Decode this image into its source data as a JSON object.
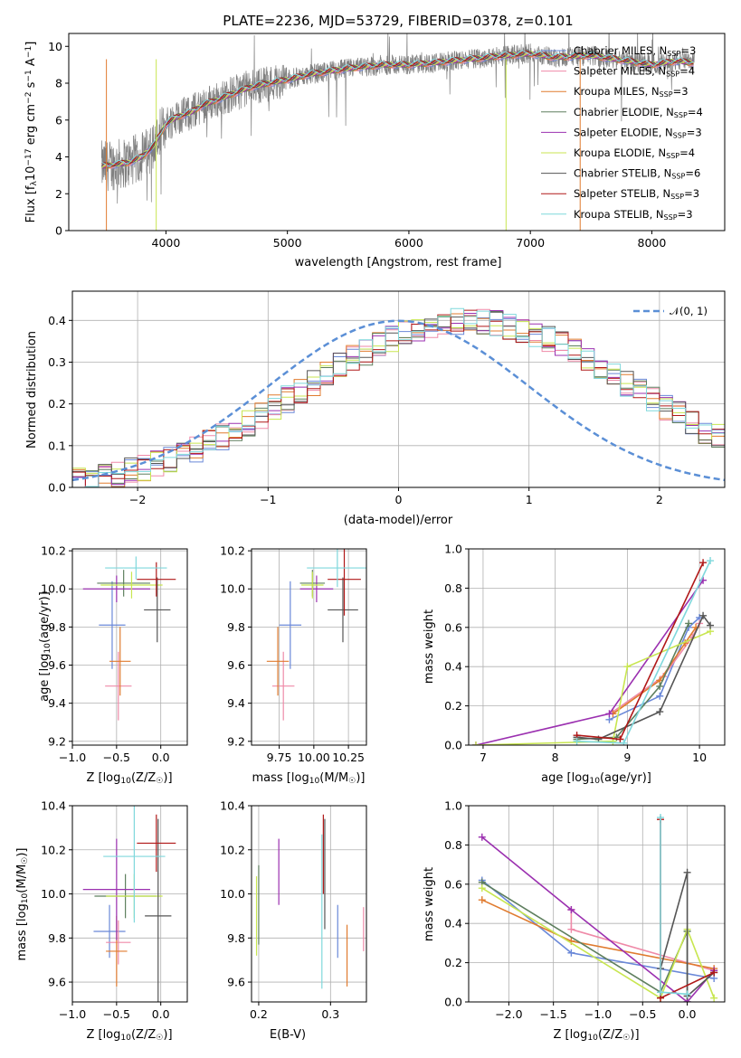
{
  "colors": {
    "Chabrier MILES": "#6a88d8",
    "Salpeter MILES": "#ef8aa8",
    "Kroupa MILES": "#e07b2f",
    "Chabrier ELODIE": "#5e7f5e",
    "Salpeter ELODIE": "#9b30b0",
    "Kroupa ELODIE": "#c8e650",
    "Chabrier STELIB": "#555555",
    "Salpeter STELIB": "#b01818",
    "Kroupa STELIB": "#7fd8dc"
  },
  "chart_data": [
    {
      "type": "line",
      "title": "PLATE=2236, MJD=53729, FIBERID=0378, z=0.101",
      "xlabel": "wavelength [Angstrom, rest frame]",
      "ylabel": "Flux [fλ10⁻¹⁷ erg cm⁻² s⁻¹ A⁻¹]",
      "xlim": [
        3200,
        8600
      ],
      "ylim": [
        0,
        10.7
      ],
      "xticks": [
        4000,
        5000,
        6000,
        7000,
        8000
      ],
      "yticks": [
        0,
        2,
        4,
        6,
        8,
        10
      ],
      "grid": false,
      "legend_position": "top-right",
      "legend": [
        {
          "label": "Chabrier MILES, N",
          "sub": "SSP",
          "tail": "=3",
          "series": "Chabrier MILES"
        },
        {
          "label": "Salpeter MILES, N",
          "sub": "SSP",
          "tail": "=4",
          "series": "Salpeter MILES"
        },
        {
          "label": "Kroupa MILES, N",
          "sub": "SSP",
          "tail": "=3",
          "series": "Kroupa MILES"
        },
        {
          "label": "Chabrier ELODIE, N",
          "sub": "SSP",
          "tail": "=4",
          "series": "Chabrier ELODIE"
        },
        {
          "label": "Salpeter ELODIE, N",
          "sub": "SSP",
          "tail": "=3",
          "series": "Salpeter ELODIE"
        },
        {
          "label": "Kroupa ELODIE, N",
          "sub": "SSP",
          "tail": "=4",
          "series": "Kroupa ELODIE"
        },
        {
          "label": "Chabrier STELIB, N",
          "sub": "SSP",
          "tail": "=6",
          "series": "Chabrier STELIB"
        },
        {
          "label": "Salpeter STELIB, N",
          "sub": "SSP",
          "tail": "=3",
          "series": "Salpeter STELIB"
        },
        {
          "label": "Kroupa STELIB, N",
          "sub": "SSP",
          "tail": "=3",
          "series": "Kroupa STELIB"
        }
      ],
      "continuum": {
        "x": [
          3470,
          3600,
          3700,
          3800,
          3900,
          4000,
          4100,
          4200,
          4300,
          4500,
          4700,
          5000,
          5200,
          5500,
          5800,
          6000,
          6200,
          6500,
          6800,
          7000,
          7200,
          7500,
          7800,
          8000,
          8200,
          8350
        ],
        "y": [
          3.5,
          3.6,
          3.7,
          4.0,
          4.6,
          5.8,
          6.2,
          6.4,
          6.8,
          7.3,
          7.8,
          8.2,
          8.5,
          8.8,
          9.0,
          9.0,
          9.1,
          9.3,
          9.5,
          9.6,
          9.4,
          9.5,
          9.2,
          9.0,
          9.2,
          9.1
        ]
      }
    },
    {
      "type": "bar",
      "xlabel": "(data-model)/error",
      "ylabel": "Normed distribution",
      "xlim": [
        -2.5,
        2.5
      ],
      "ylim": [
        0,
        0.47
      ],
      "xticks": [
        -2,
        -1,
        0,
        1,
        2
      ],
      "yticks": [
        0.0,
        0.1,
        0.2,
        0.3,
        0.4
      ],
      "grid": true,
      "legend_position": "top-right",
      "reference_curve": "N(0,1)",
      "bin_width": 0.1,
      "bin_start": -2.5,
      "reference_values": [
        0.018,
        0.022,
        0.027,
        0.033,
        0.04,
        0.048,
        0.057,
        0.068,
        0.079,
        0.092,
        0.106,
        0.121,
        0.137,
        0.155,
        0.173,
        0.192,
        0.211,
        0.231,
        0.25,
        0.27,
        0.29,
        0.308,
        0.325,
        0.341,
        0.356,
        0.368,
        0.379,
        0.387,
        0.393,
        0.397,
        0.399,
        0.397,
        0.393,
        0.387,
        0.379,
        0.368,
        0.356,
        0.341,
        0.325,
        0.308,
        0.29,
        0.27,
        0.25,
        0.231,
        0.211,
        0.192,
        0.173,
        0.155,
        0.137,
        0.121,
        0.106
      ]
    },
    {
      "type": "scatter",
      "xlabel": "Z [log₁₀(Z/Z☉)]",
      "ylabel": "age  [log₁₀(age/yr)]",
      "xlim": [
        -1.0,
        0.3
      ],
      "ylim": [
        9.18,
        10.21
      ],
      "xticks": [
        -1.0,
        -0.5,
        0.0
      ],
      "yticks": [
        9.2,
        9.4,
        9.6,
        9.8,
        10.0,
        10.2
      ],
      "grid": true,
      "series": [
        {
          "name": "Chabrier MILES",
          "x": -0.55,
          "y": 9.81,
          "xerr": 0.15,
          "yerr": 0.23
        },
        {
          "name": "Salpeter MILES",
          "x": -0.48,
          "y": 9.49,
          "xerr": 0.15,
          "yerr": 0.18
        },
        {
          "name": "Kroupa MILES",
          "x": -0.46,
          "y": 9.62,
          "xerr": 0.12,
          "yerr": 0.18
        },
        {
          "name": "Chabrier ELODIE",
          "x": -0.42,
          "y": 10.03,
          "xerr": 0.3,
          "yerr": 0.07
        },
        {
          "name": "Salpeter ELODIE",
          "x": -0.5,
          "y": 10.0,
          "xerr": 0.38,
          "yerr": 0.07
        },
        {
          "name": "Kroupa ELODIE",
          "x": -0.33,
          "y": 10.02,
          "xerr": 0.35,
          "yerr": 0.07
        },
        {
          "name": "Chabrier STELIB",
          "x": -0.04,
          "y": 9.89,
          "xerr": 0.15,
          "yerr": 0.17
        },
        {
          "name": "Salpeter STELIB",
          "x": -0.05,
          "y": 10.05,
          "xerr": 0.22,
          "yerr": 0.09
        },
        {
          "name": "Kroupa STELIB",
          "x": -0.28,
          "y": 10.11,
          "xerr": 0.35,
          "yerr": 0.06
        }
      ]
    },
    {
      "type": "scatter",
      "xlabel": "mass [log₁₀(M/M☉)]",
      "ylabel": "",
      "xlim": [
        9.55,
        10.38
      ],
      "ylim": [
        9.18,
        10.21
      ],
      "xticks": [
        9.75,
        10.0,
        10.25
      ],
      "xticklabels": [
        "9.75",
        "10.00",
        "10.25"
      ],
      "yticks": [
        9.2,
        9.4,
        9.6,
        9.8,
        10.0,
        10.2
      ],
      "grid": true,
      "series": [
        {
          "name": "Chabrier MILES",
          "x": 9.83,
          "y": 9.81,
          "xerr": 0.08,
          "yerr": 0.23
        },
        {
          "name": "Salpeter MILES",
          "x": 9.78,
          "y": 9.49,
          "xerr": 0.08,
          "yerr": 0.18
        },
        {
          "name": "Kroupa MILES",
          "x": 9.74,
          "y": 9.62,
          "xerr": 0.08,
          "yerr": 0.18
        },
        {
          "name": "Chabrier ELODIE",
          "x": 9.99,
          "y": 10.03,
          "xerr": 0.09,
          "yerr": 0.07
        },
        {
          "name": "Salpeter ELODIE",
          "x": 10.02,
          "y": 10.0,
          "xerr": 0.12,
          "yerr": 0.07
        },
        {
          "name": "Kroupa ELODIE",
          "x": 9.99,
          "y": 10.02,
          "xerr": 0.08,
          "yerr": 0.07
        },
        {
          "name": "Chabrier STELIB",
          "x": 10.21,
          "y": 9.89,
          "xerr": 0.11,
          "yerr": 0.17
        },
        {
          "name": "Salpeter STELIB",
          "x": 10.22,
          "y": 10.05,
          "xerr": 0.12,
          "yerr": 0.19
        },
        {
          "name": "Kroupa STELIB",
          "x": 10.17,
          "y": 10.11,
          "xerr": 0.22,
          "yerr": 0.1
        }
      ]
    },
    {
      "type": "line",
      "xlabel": "age  [log₁₀(age/yr)]",
      "ylabel": "mass weight",
      "xlim": [
        6.8,
        10.35
      ],
      "ylim": [
        0.0,
        1.0
      ],
      "xticks": [
        7,
        8,
        9,
        10
      ],
      "yticks": [
        0.0,
        0.2,
        0.4,
        0.6,
        0.8,
        1.0
      ],
      "grid": true,
      "series": [
        {
          "name": "Chabrier MILES",
          "x": [
            8.75,
            9.45,
            9.85,
            10.0
          ],
          "y": [
            0.13,
            0.25,
            0.6,
            0.65
          ]
        },
        {
          "name": "Salpeter MILES",
          "x": [
            8.8,
            9.5,
            9.9,
            10.0
          ],
          "y": [
            0.17,
            0.35,
            0.55,
            0.62
          ]
        },
        {
          "name": "Kroupa MILES",
          "x": [
            8.8,
            9.45,
            9.8,
            9.95
          ],
          "y": [
            0.16,
            0.33,
            0.52,
            0.6
          ]
        },
        {
          "name": "Chabrier ELODIE",
          "x": [
            8.3,
            8.85,
            9.45,
            9.85
          ],
          "y": [
            0.03,
            0.04,
            0.3,
            0.62
          ]
        },
        {
          "name": "Salpeter ELODIE",
          "x": [
            6.9,
            8.75,
            10.05
          ],
          "y": [
            0.0,
            0.16,
            0.84
          ]
        },
        {
          "name": "Kroupa ELODIE",
          "x": [
            6.9,
            8.8,
            9.0,
            10.15
          ],
          "y": [
            0.0,
            0.02,
            0.4,
            0.58
          ]
        },
        {
          "name": "Chabrier STELIB",
          "x": [
            8.3,
            8.6,
            9.45,
            10.05,
            10.15
          ],
          "y": [
            0.04,
            0.03,
            0.17,
            0.66,
            0.61
          ]
        },
        {
          "name": "Salpeter STELIB",
          "x": [
            8.3,
            8.9,
            10.05
          ],
          "y": [
            0.05,
            0.03,
            0.93
          ]
        },
        {
          "name": "Kroupa STELIB",
          "x": [
            8.3,
            8.95,
            10.15
          ],
          "y": [
            0.02,
            0.01,
            0.94
          ]
        }
      ]
    },
    {
      "type": "scatter",
      "xlabel": "Z [log₁₀(Z/Z☉)]",
      "ylabel": "mass [log₁₀(M/M☉)]",
      "xlim": [
        -1.0,
        0.3
      ],
      "ylim": [
        9.51,
        10.4
      ],
      "xticks": [
        -1.0,
        -0.5,
        0.0
      ],
      "yticks": [
        9.6,
        9.8,
        10.0,
        10.2,
        10.4
      ],
      "grid": true,
      "series": [
        {
          "name": "Chabrier MILES",
          "x": -0.58,
          "y": 9.83,
          "xerr": 0.18,
          "yerr": 0.12
        },
        {
          "name": "Salpeter MILES",
          "x": -0.48,
          "y": 9.78,
          "xerr": 0.14,
          "yerr": 0.1
        },
        {
          "name": "Kroupa MILES",
          "x": -0.5,
          "y": 9.74,
          "xerr": 0.12,
          "yerr": 0.16
        },
        {
          "name": "Chabrier ELODIE",
          "x": -0.4,
          "y": 9.99,
          "xerr": 0.35,
          "yerr": 0.1
        },
        {
          "name": "Salpeter ELODIE",
          "x": -0.5,
          "y": 10.02,
          "xerr": 0.38,
          "yerr": 0.23
        },
        {
          "name": "Kroupa ELODIE",
          "x": -0.3,
          "y": 9.99,
          "xerr": 0.32,
          "yerr": 0.1
        },
        {
          "name": "Chabrier STELIB",
          "x": -0.03,
          "y": 9.9,
          "xerr": 0.15,
          "yerr": 0.44
        },
        {
          "name": "Salpeter STELIB",
          "x": -0.05,
          "y": 10.23,
          "xerr": 0.22,
          "yerr": 0.13
        },
        {
          "name": "Kroupa STELIB",
          "x": -0.3,
          "y": 10.17,
          "xerr": 0.35,
          "yerr": 0.3
        }
      ]
    },
    {
      "type": "scatter",
      "xlabel": "E(B-V)",
      "ylabel": "",
      "xlim": [
        0.19,
        0.35
      ],
      "ylim": [
        9.51,
        10.4
      ],
      "xticks": [
        0.2,
        0.3
      ],
      "yticks": [
        9.6,
        9.8,
        10.0,
        10.2,
        10.4
      ],
      "grid": true,
      "series": [
        {
          "name": "Chabrier MILES",
          "x": 0.31,
          "y": 9.83,
          "yerr": 0.12
        },
        {
          "name": "Salpeter MILES",
          "x": 0.346,
          "y": 9.84,
          "yerr": 0.1
        },
        {
          "name": "Kroupa MILES",
          "x": 0.323,
          "y": 9.72,
          "yerr": 0.14
        },
        {
          "name": "Chabrier ELODIE",
          "x": 0.2,
          "y": 9.95,
          "yerr": 0.18
        },
        {
          "name": "Salpeter ELODIE",
          "x": 0.228,
          "y": 10.1,
          "yerr": 0.15
        },
        {
          "name": "Kroupa ELODIE",
          "x": 0.197,
          "y": 9.9,
          "yerr": 0.18
        },
        {
          "name": "Chabrier STELIB",
          "x": 0.292,
          "y": 10.09,
          "yerr": 0.25
        },
        {
          "name": "Salpeter STELIB",
          "x": 0.29,
          "y": 10.18,
          "yerr": 0.18
        },
        {
          "name": "Kroupa STELIB",
          "x": 0.288,
          "y": 9.92,
          "yerr": 0.35
        }
      ]
    },
    {
      "type": "line",
      "xlabel": "Z [log₁₀(Z/Z☉)]",
      "ylabel": "mass weight",
      "xlim": [
        -2.45,
        0.42
      ],
      "ylim": [
        0.0,
        1.0
      ],
      "xticks": [
        -2.0,
        -1.5,
        -1.0,
        -0.5,
        0.0
      ],
      "yticks": [
        0.0,
        0.2,
        0.4,
        0.6,
        0.8,
        1.0
      ],
      "grid": true,
      "series": [
        {
          "name": "Chabrier MILES",
          "x": [
            -2.3,
            -1.3,
            0.3
          ],
          "y": [
            0.62,
            0.25,
            0.12
          ]
        },
        {
          "name": "Salpeter MILES",
          "x": [
            -1.3,
            -1.3,
            0.3
          ],
          "y": [
            0.47,
            0.37,
            0.16
          ]
        },
        {
          "name": "Kroupa MILES",
          "x": [
            -2.3,
            -1.3,
            0.3
          ],
          "y": [
            0.52,
            0.31,
            0.17
          ]
        },
        {
          "name": "Chabrier ELODIE",
          "x": [
            -2.3,
            -0.3,
            0.0,
            0.0
          ],
          "y": [
            0.61,
            0.05,
            0.36,
            0.0
          ]
        },
        {
          "name": "Salpeter ELODIE",
          "x": [
            -2.3,
            -1.3,
            0.0,
            0.3
          ],
          "y": [
            0.84,
            0.47,
            0.0,
            0.16
          ]
        },
        {
          "name": "Kroupa ELODIE",
          "x": [
            -2.3,
            -0.3,
            0.0,
            0.3
          ],
          "y": [
            0.58,
            0.02,
            0.37,
            0.02
          ]
        },
        {
          "name": "Chabrier STELIB",
          "x": [
            -0.3,
            0.0,
            0.0,
            0.3
          ],
          "y": [
            0.17,
            0.66,
            0.03,
            0.15
          ]
        },
        {
          "name": "Salpeter STELIB",
          "x": [
            -0.3,
            -0.3,
            0.3
          ],
          "y": [
            0.93,
            0.02,
            0.15
          ]
        },
        {
          "name": "Kroupa STELIB",
          "x": [
            -0.3,
            -0.3,
            0.0
          ],
          "y": [
            0.94,
            0.05,
            0.04
          ]
        }
      ]
    }
  ]
}
